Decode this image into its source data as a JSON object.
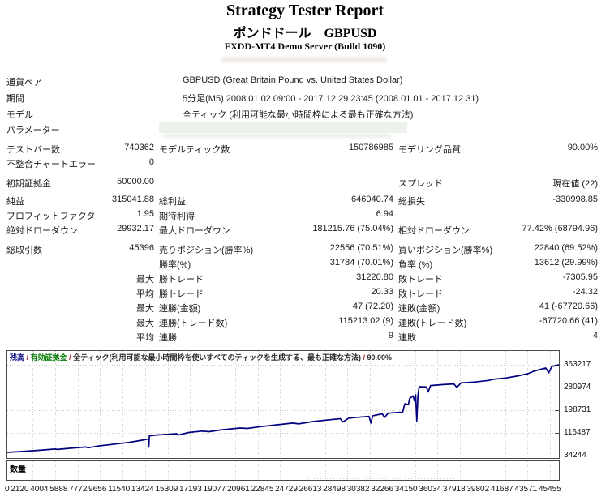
{
  "header": {
    "title": "Strategy Tester Report",
    "subtitle": "ポンドドール　GBPUSD",
    "server": "FXDD-MT4 Demo Server (Build 1090)"
  },
  "info_rows": [
    {
      "label": "通貨ペア",
      "value": "GBPUSD (Great Britain Pound vs. United States Dollar)"
    },
    {
      "label": "期間",
      "value": "5分足(M5) 2008.01.02 09:00 - 2017.12.29 23:45 (2008.01.01 - 2017.12.31)"
    },
    {
      "label": "モデル",
      "value": "全ティック (利用可能な最小時間枠による最も正確な方法)"
    },
    {
      "label": "パラメーター",
      "value": ""
    }
  ],
  "stat_rows": [
    {
      "l1": "テストバー数",
      "v1": "740362",
      "l2": "モデルティック数",
      "v2": "150786985",
      "l3": "モデリング品質",
      "v3": "90.00%"
    },
    {
      "l1": "不整合チャートエラー",
      "v1": "0",
      "l2": "",
      "v2": "",
      "l3": "",
      "v3": ""
    },
    {
      "l1": "初期証拠金",
      "v1": "50000.00",
      "l2": "",
      "v2": "",
      "l3": "スプレッド",
      "v3": "現在値 (22)"
    },
    {
      "l1": "純益",
      "v1": "315041.88",
      "l2": "総利益",
      "v2": "646040.74",
      "l3": "総損失",
      "v3": "-330998.85"
    },
    {
      "l1": "プロフィットファクタ",
      "v1": "1.95",
      "l2": "期待利得",
      "v2": "6.94",
      "l3": "",
      "v3": ""
    },
    {
      "l1": "絶対ドローダウン",
      "v1": "29932.17",
      "l2": "最大ドローダウン",
      "v2": "181215.76 (75.04%)",
      "l3": "相対ドローダウン",
      "v3": "77.42% (68794.96)"
    },
    {
      "l1": "総取引数",
      "v1": "45396",
      "l2": "売りポジション(勝率%)",
      "v2": "22556 (70.51%)",
      "l3": "買いポジション(勝率%)",
      "v3": "22840 (69.52%)"
    },
    {
      "l1": "",
      "v1": "",
      "l2": "勝率(%)",
      "v2": "31784 (70.01%)",
      "l3": "負率 (%)",
      "v3": "13612 (29.99%)"
    },
    {
      "l1": "",
      "v1": "最大",
      "l2": "勝トレード",
      "v2": "31220.80",
      "l3": "敗トレード",
      "v3": "-7305.95"
    },
    {
      "l1": "",
      "v1": "平均",
      "l2": "勝トレード",
      "v2": "20.33",
      "l3": "敗トレード",
      "v3": "-24.32"
    },
    {
      "l1": "",
      "v1": "最大",
      "l2": "連勝(金額)",
      "v2": "47 (72.20)",
      "l3": "連敗(金額)",
      "v3": "41 (-67720.66)"
    },
    {
      "l1": "",
      "v1": "最大",
      "l2": "連勝(トレード数)",
      "v2": "115213.02 (9)",
      "l3": "連敗(トレード数)",
      "v3": "-67720.66 (41)"
    },
    {
      "l1": "",
      "v1": "平均",
      "l2": "連勝",
      "v2": "9",
      "l3": "連敗",
      "v3": "4"
    }
  ],
  "chart_data": {
    "type": "line",
    "caption_parts": [
      {
        "text": "残高",
        "color": "#000080"
      },
      {
        "text": " / ",
        "color": "#b22222"
      },
      {
        "text": "有効証拠金",
        "color": "#007800"
      },
      {
        "text": " / ",
        "color": "#b22222"
      },
      {
        "text": "全ティック(利用可能な最小時間枠を使いすべてのティックを生成する、最も正確な方法)",
        "color": "#2a2a2a"
      },
      {
        "text": " / ",
        "color": "#b22222"
      },
      {
        "text": "90.00%",
        "color": "#2a2a2a"
      }
    ],
    "volume_label": "数量",
    "y_ticks": [
      "363217",
      "280974",
      "198731",
      "116487",
      "34244"
    ],
    "x_ticks": [
      "0",
      "2120",
      "4004",
      "5888",
      "7772",
      "9656",
      "11540",
      "13424",
      "15309",
      "17193",
      "19077",
      "20961",
      "22845",
      "24729",
      "26613",
      "28498",
      "30382",
      "32266",
      "34150",
      "36034",
      "37918",
      "39802",
      "41687",
      "43571",
      "45455"
    ],
    "y_min": 34244,
    "y_max": 363217,
    "x_max": 46200,
    "grid": true,
    "legend_position": "top-left",
    "line_color": "#000080",
    "series": [
      {
        "name": "残高",
        "points": [
          [
            0,
            46000
          ],
          [
            1000,
            48500
          ],
          [
            2500,
            53000
          ],
          [
            4000,
            58000
          ],
          [
            4200,
            56500
          ],
          [
            5500,
            62000
          ],
          [
            6600,
            65500
          ],
          [
            6750,
            62500
          ],
          [
            7600,
            69000
          ],
          [
            9000,
            76000
          ],
          [
            10200,
            82000
          ],
          [
            11300,
            90000
          ],
          [
            11700,
            93500
          ],
          [
            11800,
            93500
          ],
          [
            11850,
            65000
          ],
          [
            11900,
            106000
          ],
          [
            12600,
            109000
          ],
          [
            13500,
            111500
          ],
          [
            14200,
            113500
          ],
          [
            14300,
            108500
          ],
          [
            15200,
            118000
          ],
          [
            16300,
            123000
          ],
          [
            16900,
            121000
          ],
          [
            18000,
            128000
          ],
          [
            19500,
            134000
          ],
          [
            20100,
            132500
          ],
          [
            21200,
            139000
          ],
          [
            22600,
            146000
          ],
          [
            23900,
            152000
          ],
          [
            24400,
            149000
          ],
          [
            25600,
            157500
          ],
          [
            27000,
            164000
          ],
          [
            27900,
            168000
          ],
          [
            28100,
            156000
          ],
          [
            28600,
            170000
          ],
          [
            29800,
            174500
          ],
          [
            30300,
            176000
          ],
          [
            30450,
            152000
          ],
          [
            30600,
            178500
          ],
          [
            31400,
            185500
          ],
          [
            31600,
            172500
          ],
          [
            31900,
            188000
          ],
          [
            32900,
            191000
          ],
          [
            33100,
            190000
          ],
          [
            33300,
            222000
          ],
          [
            33600,
            219000
          ],
          [
            33700,
            241000
          ],
          [
            34000,
            250500
          ],
          [
            34100,
            232000
          ],
          [
            34200,
            254500
          ],
          [
            34300,
            160000
          ],
          [
            34400,
            254500
          ],
          [
            34500,
            284000
          ],
          [
            35100,
            283000
          ],
          [
            35250,
            265000
          ],
          [
            35450,
            288000
          ],
          [
            36500,
            291500
          ],
          [
            37400,
            294000
          ],
          [
            37650,
            281500
          ],
          [
            38000,
            297500
          ],
          [
            39200,
            301000
          ],
          [
            40300,
            306500
          ],
          [
            40700,
            310500
          ],
          [
            41800,
            315500
          ],
          [
            42700,
            322500
          ],
          [
            43600,
            331000
          ],
          [
            44100,
            340000
          ],
          [
            44700,
            347000
          ],
          [
            45100,
            351500
          ],
          [
            45350,
            334000
          ],
          [
            45600,
            357000
          ],
          [
            46200,
            363217
          ]
        ]
      }
    ]
  }
}
